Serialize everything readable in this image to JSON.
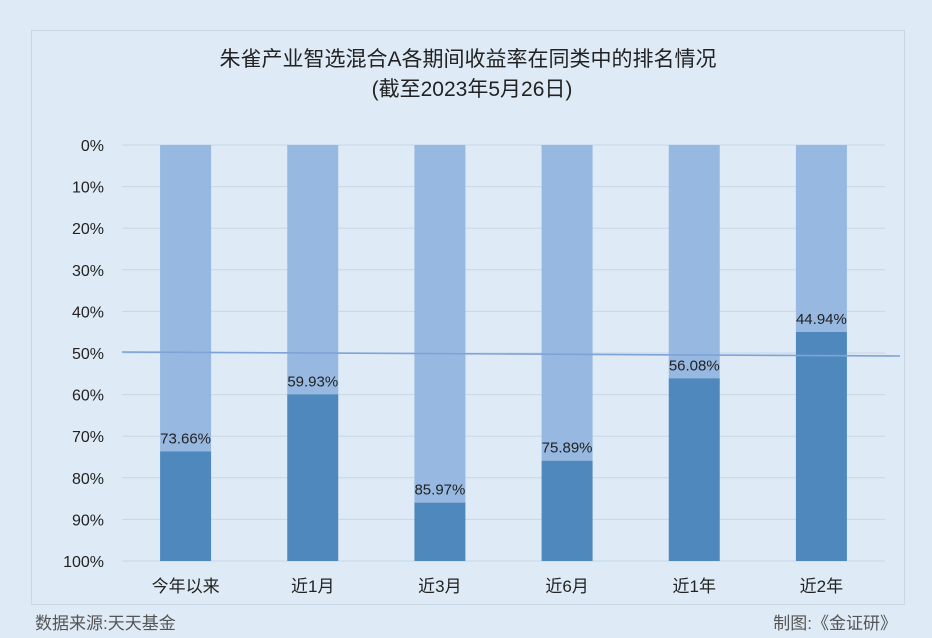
{
  "chart_data": {
    "type": "bar",
    "stacked": true,
    "title": "朱雀产业智选混合A各期间收益率在同类中的排名情况",
    "subtitle": "(截至2023年5月26日)",
    "categories": [
      "今年以来",
      "近1月",
      "近3月",
      "近6月",
      "近1年",
      "近2年"
    ],
    "values": [
      73.66,
      59.93,
      85.97,
      75.89,
      56.08,
      44.94
    ],
    "value_labels": [
      "73.66%",
      "59.93%",
      "85.97%",
      "75.89%",
      "56.08%",
      "44.94%"
    ],
    "y_ticks": [
      "0%",
      "10%",
      "20%",
      "30%",
      "40%",
      "50%",
      "60%",
      "70%",
      "80%",
      "90%",
      "100%"
    ],
    "ylim": [
      0,
      100
    ],
    "y_inverted": true,
    "reference_line": 50,
    "grid": true,
    "colors": {
      "rank_bar": "#4f88bd",
      "remainder_bar": "#97b8e0",
      "reference_line": "#7ea3d7",
      "grid": "#c8d7e6"
    }
  },
  "footer": {
    "source": "数据来源:天天基金",
    "credit": "制图:《金证研》"
  }
}
